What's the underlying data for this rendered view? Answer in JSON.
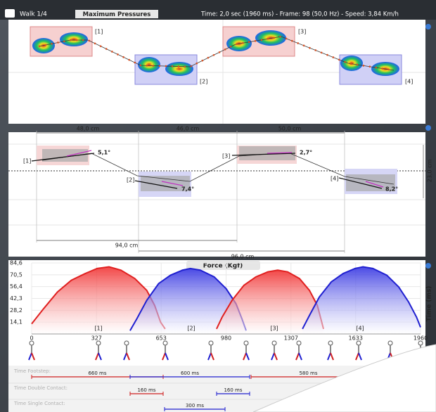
{
  "header": {
    "title": "Walk 1/4",
    "view": "Maximum Pressures",
    "info": "Time: 2,0 sec (1960 ms)  -  Frame: 98 (50,0 Hz)  -  Speed: 3,84 Km/h"
  },
  "footprints": {
    "labels": [
      "[1]",
      "[2]",
      "[3]",
      "[4]"
    ]
  },
  "distances": {
    "steps": [
      "48,0 cm",
      "46,0 cm",
      "50,0 cm"
    ],
    "strides": [
      "94,0 cm",
      "96,0 cm"
    ],
    "width": "23,0 cm",
    "labels": [
      "[1]",
      "[2]",
      "[3]",
      "[4]"
    ],
    "angles": [
      "5,1°",
      "7,4°",
      "2,7°",
      "8,2°"
    ]
  },
  "chart_data": {
    "type": "area",
    "title": "Force (Kgf)",
    "y2_label": "Time (ms)",
    "step_labels": [
      "[1]",
      "[2]",
      "[3]",
      "[4]"
    ],
    "xlim": [
      0,
      1960
    ],
    "xticks": [
      0,
      327,
      653,
      980,
      1307,
      1633,
      1960
    ],
    "ylim": [
      0,
      84.6
    ],
    "yticks": [
      {
        "value": 14.1,
        "label": "14,1"
      },
      {
        "value": 28.2,
        "label": "28,2"
      },
      {
        "value": 42.3,
        "label": "42,3"
      },
      {
        "value": 56.4,
        "label": "56,4"
      },
      {
        "value": 70.5,
        "label": "70,5"
      },
      {
        "value": 84.6,
        "label": "84,6"
      }
    ],
    "series": [
      {
        "color": "#e02020",
        "x": [
          0,
          60,
          130,
          200,
          270,
          330,
          390,
          450,
          520,
          580,
          620,
          650,
          673
        ],
        "values": [
          12,
          30,
          50,
          64,
          72,
          78,
          80,
          76,
          66,
          52,
          34,
          14,
          6
        ]
      },
      {
        "color": "#2020d0",
        "x": [
          496,
          530,
          580,
          640,
          700,
          760,
          800,
          850,
          920,
          980,
          1030,
          1060,
          1081
        ],
        "values": [
          4,
          18,
          40,
          60,
          70,
          76,
          78,
          76,
          68,
          54,
          36,
          18,
          4
        ]
      },
      {
        "color": "#e02020",
        "x": [
          932,
          960,
          1010,
          1070,
          1130,
          1190,
          1240,
          1290,
          1350,
          1400,
          1440,
          1460,
          1471
        ],
        "values": [
          6,
          20,
          40,
          58,
          68,
          74,
          76,
          74,
          66,
          52,
          34,
          16,
          6
        ]
      },
      {
        "color": "#2020d0",
        "x": [
          1365,
          1400,
          1450,
          1510,
          1570,
          1630,
          1670,
          1720,
          1790,
          1850,
          1900,
          1940,
          1960
        ],
        "values": [
          6,
          22,
          44,
          62,
          72,
          78,
          80,
          78,
          70,
          56,
          38,
          20,
          8
        ]
      }
    ]
  },
  "timings": {
    "rows": [
      {
        "label": "Time Footstep:",
        "values": [
          "660 ms",
          "600 ms",
          "580 ms"
        ]
      },
      {
        "label": "Time Double Contact:",
        "values": [
          "160 ms",
          "160 ms"
        ]
      },
      {
        "label": "Time Single Contact:",
        "values": [
          "300 ms"
        ]
      }
    ]
  }
}
